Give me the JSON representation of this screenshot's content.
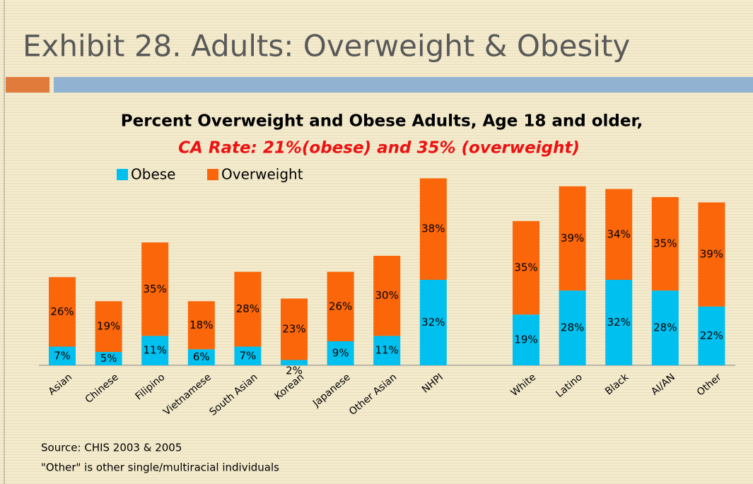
{
  "slide_title": "Exhibit 28. Adults: Overweight & Obesity",
  "chart_data": {
    "type": "bar",
    "stacked": true,
    "title": "Percent Overweight and Obese Adults, Age 18 and older,",
    "subtitle": "CA Rate:  21%(obese) and 35% (overweight)",
    "categories": [
      "Asian",
      "Chinese",
      "Filipino",
      "Vietnamese",
      "South Asian",
      "Korean",
      "Japanese",
      "Other Asian",
      "NHPI",
      null,
      "White",
      "Latino",
      "Black",
      "AI/AN",
      "Other"
    ],
    "series": [
      {
        "name": "Obese",
        "color": "#00c0f0",
        "values": [
          7,
          5,
          11,
          6,
          7,
          2,
          9,
          11,
          32,
          null,
          19,
          28,
          32,
          28,
          22
        ],
        "value_labels": [
          "7%",
          "5%",
          "11%",
          "6%",
          "7%",
          "2%",
          "9%",
          "11%",
          "32%",
          null,
          "19%",
          "28%",
          "32%",
          "28%",
          "22%"
        ]
      },
      {
        "name": "Overweight",
        "color": "#fa6609",
        "values": [
          26,
          19,
          35,
          18,
          28,
          23,
          26,
          30,
          38,
          null,
          35,
          39,
          34,
          35,
          39
        ],
        "value_labels": [
          "26%",
          "19%",
          "35%",
          "18%",
          "28%",
          "23%",
          "26%",
          "30%",
          "38%",
          null,
          "35%",
          "39%",
          "34%",
          "35%",
          "39%"
        ]
      }
    ],
    "notes": [
      "Source:  CHIS 2003 & 2005",
      "\"Other\" is other single/multiracial individuals"
    ]
  }
}
